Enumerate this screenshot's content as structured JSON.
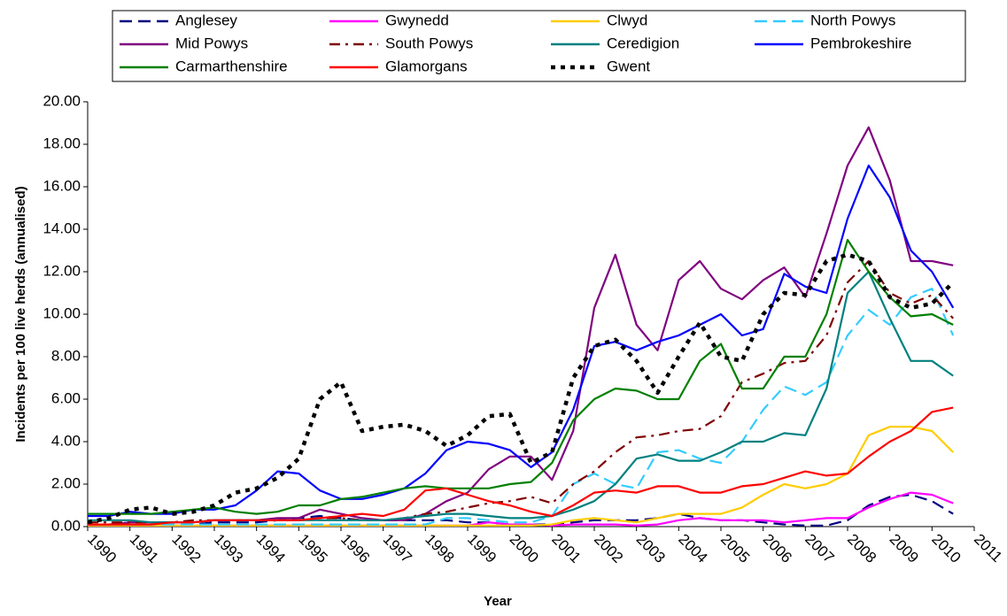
{
  "chart_data": {
    "type": "line",
    "x_label": "Year",
    "y_label": "Incidents per 100 live herds (annualised)",
    "x": [
      1990,
      1990.5,
      1991,
      1991.5,
      1992,
      1992.5,
      1993,
      1993.5,
      1994,
      1994.5,
      1995,
      1995.5,
      1996,
      1996.5,
      1997,
      1997.5,
      1998,
      1998.5,
      1999,
      1999.5,
      2000,
      2000.5,
      2001,
      2001.5,
      2002,
      2002.5,
      2003,
      2003.5,
      2004,
      2004.5,
      2005,
      2005.5,
      2006,
      2006.5,
      2007,
      2007.5,
      2008,
      2008.5,
      2009,
      2009.5,
      2010,
      2010.5
    ],
    "xlim": [
      1990,
      2011
    ],
    "xticks": [
      1990,
      1991,
      1992,
      1993,
      1994,
      1995,
      1996,
      1997,
      1998,
      1999,
      2000,
      2001,
      2002,
      2003,
      2004,
      2005,
      2006,
      2007,
      2008,
      2009,
      2010,
      2011
    ],
    "ylim": [
      0,
      20
    ],
    "yticks": [
      {
        "value": 0,
        "label": "0.00"
      },
      {
        "value": 2,
        "label": "2.00"
      },
      {
        "value": 4,
        "label": "4.00"
      },
      {
        "value": 6,
        "label": "6.00"
      },
      {
        "value": 8,
        "label": "8.00"
      },
      {
        "value": 10,
        "label": "10.00"
      },
      {
        "value": 12,
        "label": "12.00"
      },
      {
        "value": 14,
        "label": "14.00"
      },
      {
        "value": 16,
        "label": "16.00"
      },
      {
        "value": 18,
        "label": "18.00"
      },
      {
        "value": 20,
        "label": "20.00"
      }
    ],
    "grid": false,
    "legend": "top",
    "series": [
      {
        "name": "Anglesey",
        "color": "#000080",
        "line_style": "dashed",
        "values": [
          0.1,
          0.1,
          0.1,
          0.1,
          0.1,
          0.1,
          0.2,
          0.2,
          0.2,
          0.3,
          0.4,
          0.5,
          0.4,
          0.3,
          0.3,
          0.3,
          0.3,
          0.3,
          0.2,
          0.2,
          0.1,
          0.1,
          0.1,
          0.2,
          0.3,
          0.3,
          0.3,
          0.4,
          0.6,
          0.4,
          0.3,
          0.3,
          0.2,
          0.1,
          0.05,
          0.05,
          0.3,
          1.0,
          1.4,
          1.5,
          1.2,
          0.6
        ]
      },
      {
        "name": "Gwynedd",
        "color": "#ff00ff",
        "line_style": "solid",
        "values": [
          0.05,
          0.05,
          0.05,
          0.05,
          0.05,
          0.05,
          0.05,
          0.05,
          0.05,
          0.05,
          0.05,
          0.05,
          0.05,
          0.05,
          0.05,
          0.05,
          0.05,
          0.05,
          0.05,
          0.2,
          0.1,
          0.1,
          0.05,
          0.1,
          0.1,
          0.1,
          0.05,
          0.1,
          0.3,
          0.4,
          0.3,
          0.3,
          0.3,
          0.2,
          0.3,
          0.4,
          0.4,
          0.9,
          1.3,
          1.6,
          1.5,
          1.1
        ]
      },
      {
        "name": "Clwyd",
        "color": "#ffcc00",
        "line_style": "solid",
        "values": [
          0.05,
          0.05,
          0.05,
          0.05,
          0.05,
          0.05,
          0.05,
          0.05,
          0.05,
          0.05,
          0.05,
          0.05,
          0.05,
          0.05,
          0.05,
          0.05,
          0.05,
          0.05,
          0.05,
          0.05,
          0.05,
          0.05,
          0.1,
          0.3,
          0.4,
          0.3,
          0.2,
          0.4,
          0.6,
          0.6,
          0.6,
          0.9,
          1.5,
          2.0,
          1.8,
          2.0,
          2.5,
          4.3,
          4.7,
          4.7,
          4.5,
          3.5
        ]
      },
      {
        "name": "North Powys",
        "color": "#33ccff",
        "line_style": "dashed",
        "values": [
          0.1,
          0.1,
          0.1,
          0.1,
          0.1,
          0.1,
          0.1,
          0.1,
          0.1,
          0.1,
          0.1,
          0.1,
          0.1,
          0.1,
          0.1,
          0.1,
          0.1,
          0.4,
          0.4,
          0.3,
          0.2,
          0.2,
          0.5,
          2.0,
          2.5,
          2.0,
          1.8,
          3.5,
          3.6,
          3.2,
          3.0,
          4.0,
          5.5,
          6.6,
          6.2,
          6.8,
          9.0,
          10.2,
          9.5,
          10.8,
          11.2,
          9.0
        ]
      },
      {
        "name": "Mid Powys",
        "color": "#800080",
        "line_style": "solid",
        "values": [
          0.1,
          0.1,
          0.2,
          0.2,
          0.2,
          0.2,
          0.3,
          0.3,
          0.3,
          0.4,
          0.4,
          0.8,
          0.6,
          0.4,
          0.3,
          0.3,
          0.6,
          1.2,
          1.6,
          2.7,
          3.3,
          3.3,
          2.2,
          4.5,
          10.3,
          12.8,
          9.5,
          8.3,
          11.6,
          12.5,
          11.2,
          10.7,
          11.6,
          12.2,
          10.8,
          13.8,
          17.0,
          18.8,
          16.3,
          12.5,
          12.5,
          12.3
        ]
      },
      {
        "name": "South Powys",
        "color": "#800000",
        "line_style": "dashdot",
        "values": [
          0.2,
          0.2,
          0.2,
          0.2,
          0.2,
          0.3,
          0.3,
          0.3,
          0.3,
          0.3,
          0.3,
          0.4,
          0.4,
          0.3,
          0.3,
          0.4,
          0.6,
          0.7,
          0.9,
          1.1,
          1.2,
          1.4,
          1.1,
          2.0,
          2.6,
          3.5,
          4.2,
          4.3,
          4.5,
          4.6,
          5.2,
          6.8,
          7.2,
          7.7,
          7.8,
          9.0,
          11.5,
          12.5,
          11.0,
          10.5,
          10.9,
          9.8
        ]
      },
      {
        "name": "Ceredigion",
        "color": "#008080",
        "line_style": "solid",
        "values": [
          0.3,
          0.3,
          0.3,
          0.2,
          0.2,
          0.2,
          0.3,
          0.3,
          0.3,
          0.3,
          0.3,
          0.3,
          0.3,
          0.3,
          0.3,
          0.4,
          0.5,
          0.6,
          0.6,
          0.5,
          0.4,
          0.4,
          0.5,
          0.8,
          1.2,
          2.0,
          3.2,
          3.4,
          3.1,
          3.1,
          3.5,
          4.0,
          4.0,
          4.4,
          4.3,
          6.5,
          11.0,
          12.0,
          9.8,
          7.8,
          7.8,
          7.1
        ]
      },
      {
        "name": "Pembrokeshire",
        "color": "#0000ff",
        "line_style": "solid",
        "values": [
          0.5,
          0.5,
          0.7,
          0.6,
          0.6,
          0.8,
          0.8,
          1.0,
          1.7,
          2.6,
          2.5,
          1.7,
          1.3,
          1.3,
          1.5,
          1.8,
          2.5,
          3.6,
          4.0,
          3.9,
          3.6,
          2.8,
          3.5,
          5.5,
          8.5,
          8.7,
          8.3,
          8.7,
          9.0,
          9.5,
          10.0,
          9.0,
          9.3,
          11.9,
          11.3,
          11.0,
          14.5,
          17.0,
          15.5,
          13.0,
          12.0,
          10.3
        ]
      },
      {
        "name": "Carmarthenshire",
        "color": "#008000",
        "line_style": "solid",
        "values": [
          0.6,
          0.6,
          0.6,
          0.6,
          0.7,
          0.8,
          0.9,
          0.7,
          0.6,
          0.7,
          1.0,
          1.0,
          1.3,
          1.4,
          1.6,
          1.8,
          1.9,
          1.8,
          1.8,
          1.8,
          2.0,
          2.1,
          3.0,
          5.0,
          6.0,
          6.5,
          6.4,
          6.0,
          6.0,
          7.8,
          8.6,
          6.5,
          6.5,
          8.0,
          8.0,
          10.0,
          13.5,
          12.0,
          10.8,
          9.9,
          10.0,
          9.5
        ]
      },
      {
        "name": "Glamorgans",
        "color": "#ff0000",
        "line_style": "solid",
        "values": [
          0.1,
          0.1,
          0.1,
          0.1,
          0.2,
          0.2,
          0.3,
          0.3,
          0.3,
          0.3,
          0.3,
          0.4,
          0.5,
          0.6,
          0.5,
          0.8,
          1.7,
          1.8,
          1.5,
          1.2,
          1.0,
          0.7,
          0.5,
          1.0,
          1.6,
          1.7,
          1.6,
          1.9,
          1.9,
          1.6,
          1.6,
          1.9,
          2.0,
          2.3,
          2.6,
          2.4,
          2.5,
          3.3,
          4.0,
          4.5,
          5.4,
          5.6
        ]
      },
      {
        "name": "Gwent",
        "color": "#000000",
        "line_style": "dotted",
        "values": [
          0.2,
          0.4,
          0.8,
          0.9,
          0.6,
          0.7,
          1.0,
          1.6,
          1.8,
          2.3,
          3.2,
          6.0,
          6.8,
          4.5,
          4.7,
          4.8,
          4.5,
          3.8,
          4.3,
          5.2,
          5.3,
          3.0,
          3.5,
          7.0,
          8.5,
          8.8,
          7.8,
          6.3,
          8.0,
          9.6,
          8.0,
          7.8,
          10.0,
          11.0,
          10.9,
          12.5,
          12.8,
          12.5,
          10.8,
          10.3,
          10.5,
          11.5
        ]
      }
    ]
  }
}
